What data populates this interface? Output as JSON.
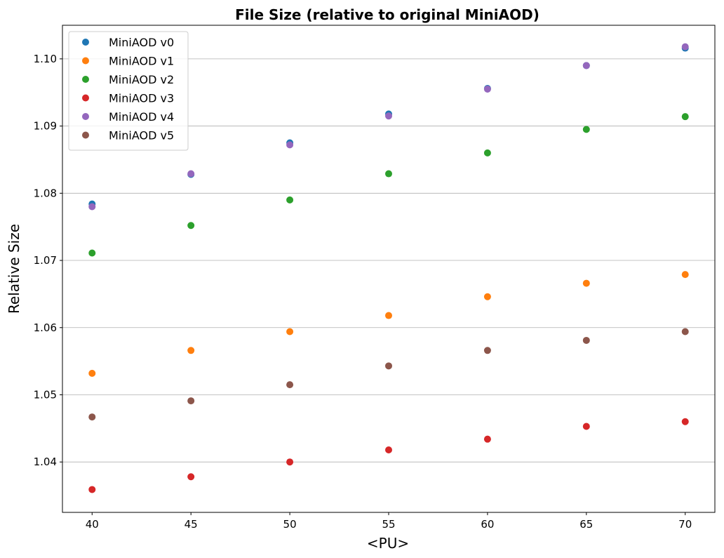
{
  "chart_data": {
    "type": "scatter",
    "title": "File Size (relative to original  MiniAOD)",
    "xlabel": "<PU>",
    "ylabel": "Relative Size",
    "xlim": [
      38.5,
      71.5
    ],
    "ylim": [
      1.0325,
      1.105
    ],
    "xticks": [
      40,
      45,
      50,
      55,
      60,
      65,
      70
    ],
    "yticks": [
      1.04,
      1.05,
      1.06,
      1.07,
      1.08,
      1.09,
      1.1
    ],
    "ytick_labels": [
      "1.04",
      "1.05",
      "1.06",
      "1.07",
      "1.08",
      "1.09",
      "1.10"
    ],
    "grid": "horizontal",
    "legend_position": "top-left",
    "x": [
      40,
      45,
      50,
      55,
      60,
      65,
      70
    ],
    "series": [
      {
        "name": "MiniAOD v0",
        "color": "#1f77b4",
        "values": [
          1.0784,
          1.0828,
          1.0875,
          1.0918,
          1.0956,
          1.099,
          1.1016
        ]
      },
      {
        "name": "MiniAOD v1",
        "color": "#ff7f0e",
        "values": [
          1.0532,
          1.0566,
          1.0594,
          1.0618,
          1.0646,
          1.0666,
          1.0679
        ]
      },
      {
        "name": "MiniAOD v2",
        "color": "#2ca02c",
        "values": [
          1.0711,
          1.0752,
          1.079,
          1.0829,
          1.086,
          1.0895,
          1.0914
        ]
      },
      {
        "name": "MiniAOD v3",
        "color": "#d62728",
        "values": [
          1.0359,
          1.0378,
          1.04,
          1.0418,
          1.0434,
          1.0453,
          1.046
        ]
      },
      {
        "name": "MiniAOD v4",
        "color": "#9467bd",
        "values": [
          1.078,
          1.0829,
          1.0872,
          1.0915,
          1.0955,
          1.099,
          1.1018
        ]
      },
      {
        "name": "MiniAOD v5",
        "color": "#8c564b",
        "values": [
          1.0467,
          1.0491,
          1.0515,
          1.0543,
          1.0566,
          1.0581,
          1.0594
        ]
      }
    ]
  }
}
